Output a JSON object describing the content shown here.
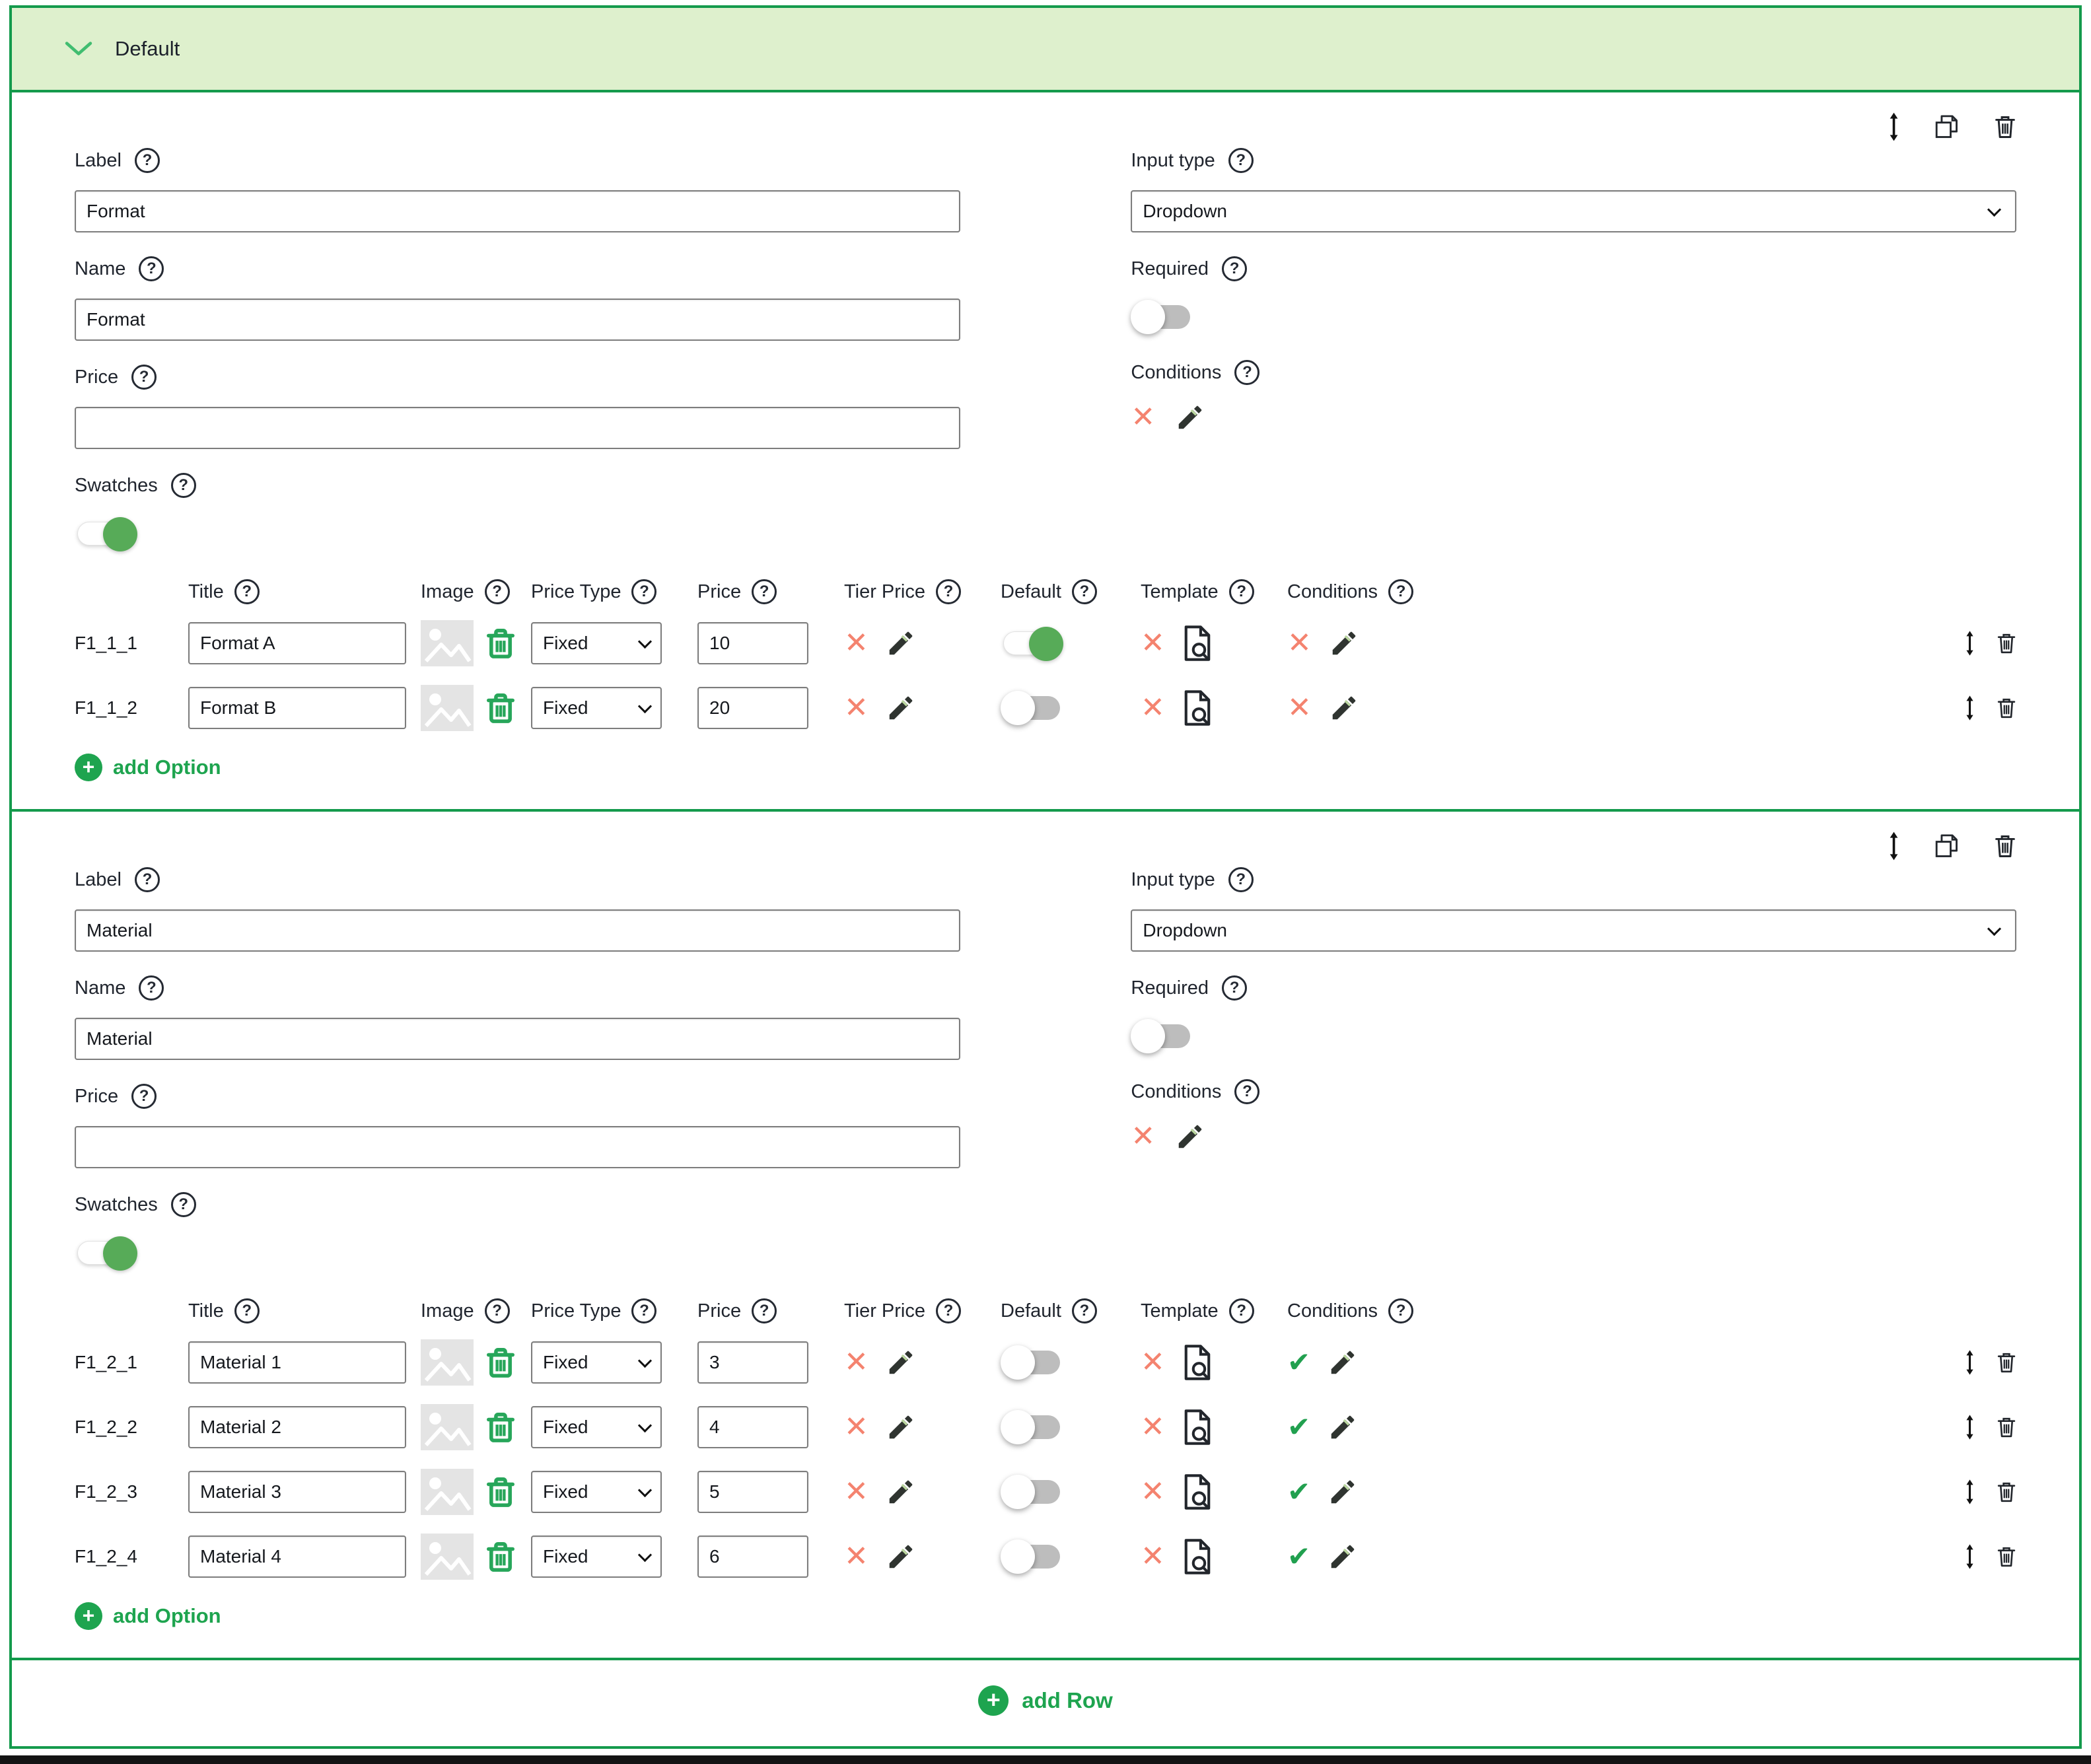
{
  "header": {
    "title": "Default"
  },
  "footer": {
    "add_row_label": "add Row"
  },
  "add_option_label": "add Option",
  "field_labels": {
    "label": "Label",
    "name": "Name",
    "price": "Price",
    "swatches": "Swatches",
    "input_type": "Input type",
    "required": "Required",
    "conditions": "Conditions"
  },
  "option_columns": {
    "title": "Title",
    "image": "Image",
    "price_type": "Price Type",
    "price": "Price",
    "tier_price": "Tier Price",
    "default": "Default",
    "template": "Template",
    "conditions": "Conditions"
  },
  "colors": {
    "accent_green": "#149a4c",
    "link_green": "#1ea44f",
    "toggle_green": "#57ab58",
    "header_bg_green": "#def0cd",
    "error_red": "#f4836f"
  },
  "blocks": [
    {
      "label_value": "Format",
      "name_value": "Format",
      "price_value": "",
      "input_type_value": "Dropdown",
      "swatches_on": true,
      "required_on": false,
      "options": [
        {
          "id": "F1_1_1",
          "title": "Format A",
          "price_type": "Fixed",
          "price": "10",
          "default_on": true,
          "conditions_set": false
        },
        {
          "id": "F1_1_2",
          "title": "Format B",
          "price_type": "Fixed",
          "price": "20",
          "default_on": false,
          "conditions_set": false
        }
      ]
    },
    {
      "label_value": "Material",
      "name_value": "Material",
      "price_value": "",
      "input_type_value": "Dropdown",
      "swatches_on": true,
      "required_on": false,
      "options": [
        {
          "id": "F1_2_1",
          "title": "Material 1",
          "price_type": "Fixed",
          "price": "3",
          "default_on": false,
          "conditions_set": true
        },
        {
          "id": "F1_2_2",
          "title": "Material 2",
          "price_type": "Fixed",
          "price": "4",
          "default_on": false,
          "conditions_set": true
        },
        {
          "id": "F1_2_3",
          "title": "Material 3",
          "price_type": "Fixed",
          "price": "5",
          "default_on": false,
          "conditions_set": true
        },
        {
          "id": "F1_2_4",
          "title": "Material 4",
          "price_type": "Fixed",
          "price": "6",
          "default_on": false,
          "conditions_set": true
        }
      ]
    }
  ]
}
